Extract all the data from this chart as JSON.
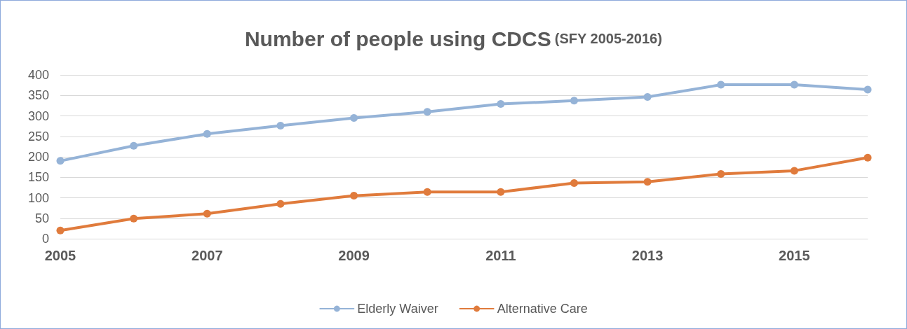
{
  "chart_data": {
    "type": "line",
    "title": "Number of people using CDCS",
    "subtitle": "(SFY 2005-2016)",
    "x": [
      2005,
      2006,
      2007,
      2008,
      2009,
      2010,
      2011,
      2012,
      2013,
      2014,
      2015,
      2016
    ],
    "series": [
      {
        "name": "Elderly Waiver",
        "color": "#95b3d7",
        "values": [
          190,
          227,
          256,
          276,
          295,
          310,
          329,
          337,
          346,
          376,
          376,
          364
        ]
      },
      {
        "name": "Alternative Care",
        "color": "#e07b3c",
        "values": [
          20,
          49,
          61,
          85,
          105,
          114,
          114,
          136,
          139,
          158,
          166,
          198
        ]
      }
    ],
    "xlim": [
      2005,
      2016
    ],
    "xticks": [
      2005,
      2007,
      2009,
      2011,
      2013,
      2015
    ],
    "ylim": [
      0,
      400
    ],
    "yticks": [
      0,
      50,
      100,
      150,
      200,
      250,
      300,
      350,
      400
    ],
    "grid": "y",
    "legend": "bottom",
    "marker": "circle",
    "line_style": "solid"
  }
}
